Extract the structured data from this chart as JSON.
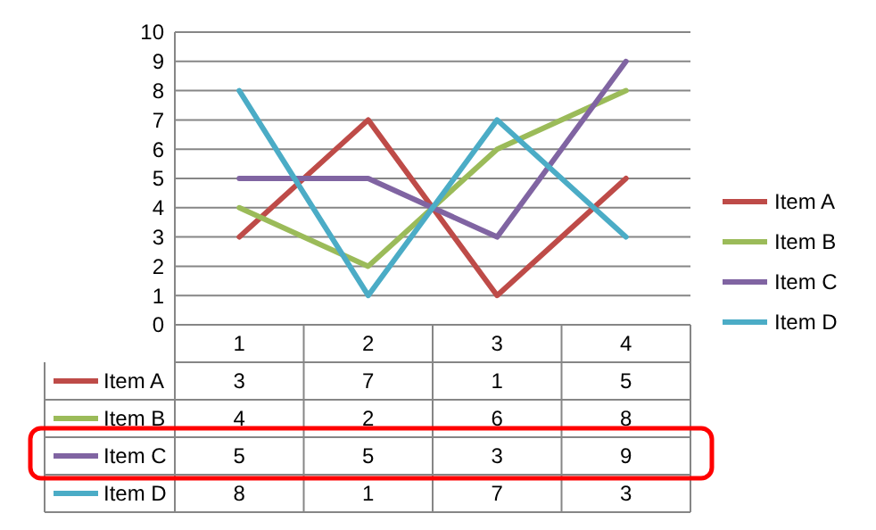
{
  "chart_data": {
    "type": "line",
    "categories": [
      "1",
      "2",
      "3",
      "4"
    ],
    "series": [
      {
        "name": "Item A",
        "color": "#be4b48",
        "values": [
          3,
          7,
          1,
          5
        ]
      },
      {
        "name": "Item B",
        "color": "#9bbb59",
        "values": [
          4,
          2,
          6,
          8
        ]
      },
      {
        "name": "Item C",
        "color": "#8064a2",
        "values": [
          5,
          5,
          3,
          9
        ]
      },
      {
        "name": "Item D",
        "color": "#4bacc6",
        "values": [
          8,
          1,
          7,
          3
        ]
      }
    ],
    "ylim": [
      0,
      10
    ],
    "yticks": [
      0,
      1,
      2,
      3,
      4,
      5,
      6,
      7,
      8,
      9,
      10
    ],
    "grid": "y",
    "legend": "right",
    "data_labels": true,
    "marker": "none",
    "line_style": "solid"
  }
}
